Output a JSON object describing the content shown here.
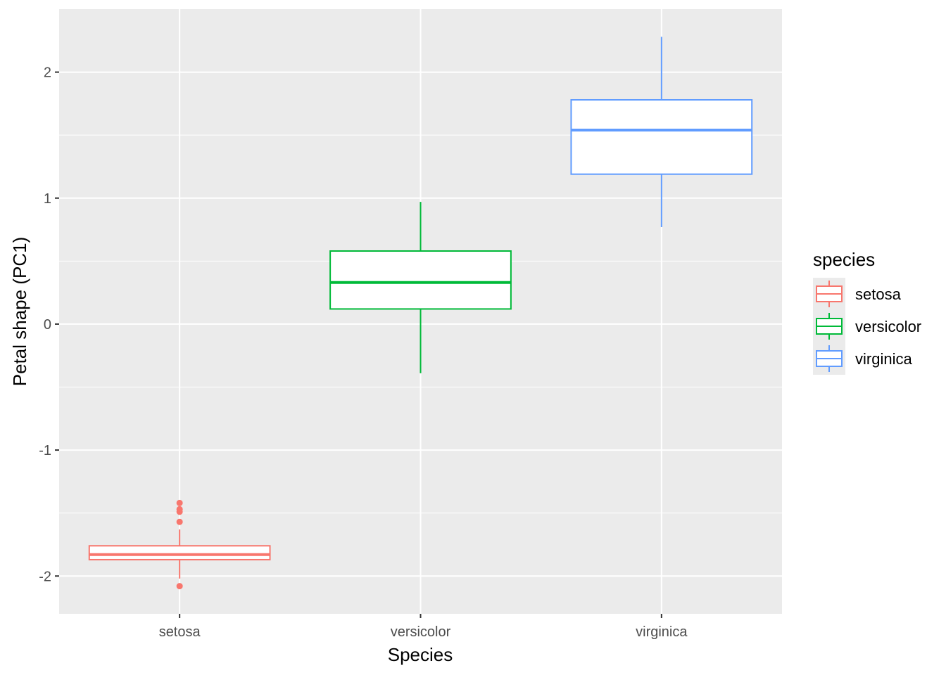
{
  "chart_data": {
    "type": "boxplot",
    "xlabel": "Species",
    "ylabel": "Petal shape (PC1)",
    "categories": [
      "setosa",
      "versicolor",
      "virginica"
    ],
    "ylim": [
      -2.3,
      2.5
    ],
    "yticks": [
      -2,
      -1,
      0,
      1,
      2
    ],
    "grid": true,
    "legend": {
      "title": "species",
      "position": "right",
      "entries": [
        "setosa",
        "versicolor",
        "virginica"
      ]
    },
    "series": [
      {
        "name": "setosa",
        "color": "#F8766D",
        "whisker_low": -2.02,
        "q1": -1.87,
        "median": -1.83,
        "q3": -1.76,
        "whisker_high": -1.63,
        "outliers": [
          -1.42,
          -1.47,
          -1.49,
          -1.57,
          -2.08
        ]
      },
      {
        "name": "versicolor",
        "color": "#00BA38",
        "whisker_low": -0.39,
        "q1": 0.12,
        "median": 0.33,
        "q3": 0.58,
        "whisker_high": 0.97,
        "outliers": []
      },
      {
        "name": "virginica",
        "color": "#619CFF",
        "whisker_low": 0.77,
        "q1": 1.19,
        "median": 1.54,
        "q3": 1.78,
        "whisker_high": 2.28,
        "outliers": []
      }
    ]
  }
}
